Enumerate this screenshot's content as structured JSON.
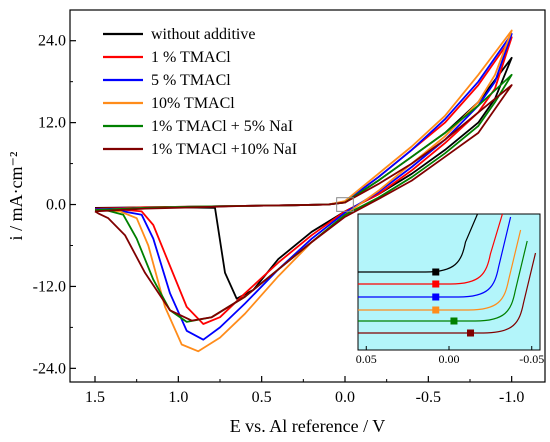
{
  "chart_data": {
    "type": "line",
    "xlabel": "E vs. Al reference / V",
    "ylabel": "i / mA·cm⁻²",
    "xlim": [
      1.65,
      -1.2
    ],
    "ylim": [
      -26,
      28.5
    ],
    "x_reversed": true,
    "xticks": [
      1.5,
      1.0,
      0.5,
      0.0,
      -0.5,
      -1.0
    ],
    "xtick_labels": [
      "1.5",
      "1.0",
      "0.5",
      "0.0",
      "-0.5",
      "-1.0"
    ],
    "yticks": [
      24,
      12,
      0,
      -12,
      -24
    ],
    "ytick_labels": [
      "24.0",
      "12.0",
      "0.0",
      "-12.0",
      "-24.0"
    ],
    "legend_position": "top-left",
    "grid": false,
    "series": [
      {
        "name": "without additive",
        "color": "#000000",
        "forward": [
          [
            1.5,
            -0.5
          ],
          [
            1.2,
            -0.4
          ],
          [
            0.9,
            -0.3
          ],
          [
            0.6,
            -0.2
          ],
          [
            0.3,
            -0.1
          ],
          [
            0.1,
            0.0
          ],
          [
            0.0,
            0.3
          ],
          [
            -0.2,
            3.5
          ],
          [
            -0.4,
            7.0
          ],
          [
            -0.6,
            10.5
          ],
          [
            -0.8,
            15.0
          ],
          [
            -1.0,
            21.5
          ]
        ],
        "reverse": [
          [
            -1.0,
            21.5
          ],
          [
            -0.9,
            15.5
          ],
          [
            -0.8,
            12.0
          ],
          [
            -0.6,
            8.0
          ],
          [
            -0.4,
            4.5
          ],
          [
            -0.2,
            1.5
          ],
          [
            0.0,
            -1.0
          ],
          [
            0.2,
            -4.0
          ],
          [
            0.4,
            -8.0
          ],
          [
            0.55,
            -12.5
          ],
          [
            0.65,
            -13.8
          ],
          [
            0.72,
            -10.0
          ],
          [
            0.78,
            -0.5
          ],
          [
            1.0,
            -0.4
          ],
          [
            1.2,
            -0.4
          ],
          [
            1.5,
            -0.5
          ]
        ]
      },
      {
        "name": "1 % TMACl",
        "color": "#ff0000",
        "forward": [
          [
            1.5,
            -0.6
          ],
          [
            1.2,
            -0.4
          ],
          [
            0.9,
            -0.3
          ],
          [
            0.6,
            -0.2
          ],
          [
            0.3,
            -0.1
          ],
          [
            0.1,
            0.0
          ],
          [
            0.0,
            0.4
          ],
          [
            -0.2,
            4.0
          ],
          [
            -0.4,
            8.0
          ],
          [
            -0.6,
            12.0
          ],
          [
            -0.8,
            17.5
          ],
          [
            -1.0,
            24.5
          ]
        ],
        "reverse": [
          [
            -1.0,
            24.5
          ],
          [
            -0.9,
            17.0
          ],
          [
            -0.8,
            13.5
          ],
          [
            -0.6,
            9.0
          ],
          [
            -0.4,
            5.0
          ],
          [
            -0.2,
            1.5
          ],
          [
            0.0,
            -1.0
          ],
          [
            0.2,
            -4.5
          ],
          [
            0.4,
            -8.5
          ],
          [
            0.6,
            -13.0
          ],
          [
            0.75,
            -16.5
          ],
          [
            0.85,
            -17.5
          ],
          [
            0.95,
            -15.0
          ],
          [
            1.05,
            -9.0
          ],
          [
            1.15,
            -3.0
          ],
          [
            1.22,
            -1.0
          ],
          [
            1.35,
            -0.7
          ],
          [
            1.5,
            -0.6
          ]
        ]
      },
      {
        "name": "5 % TMACl",
        "color": "#0000ff",
        "forward": [
          [
            1.5,
            -0.7
          ],
          [
            1.2,
            -0.5
          ],
          [
            0.9,
            -0.3
          ],
          [
            0.6,
            -0.2
          ],
          [
            0.3,
            -0.1
          ],
          [
            0.1,
            0.0
          ],
          [
            0.0,
            0.4
          ],
          [
            -0.2,
            4.0
          ],
          [
            -0.4,
            8.0
          ],
          [
            -0.6,
            12.5
          ],
          [
            -0.8,
            18.0
          ],
          [
            -1.0,
            25.0
          ]
        ],
        "reverse": [
          [
            -1.0,
            25.0
          ],
          [
            -0.9,
            18.0
          ],
          [
            -0.8,
            14.5
          ],
          [
            -0.6,
            9.5
          ],
          [
            -0.4,
            5.5
          ],
          [
            -0.2,
            1.8
          ],
          [
            0.0,
            -1.2
          ],
          [
            0.2,
            -5.0
          ],
          [
            0.4,
            -9.5
          ],
          [
            0.6,
            -14.5
          ],
          [
            0.75,
            -18.0
          ],
          [
            0.85,
            -19.8
          ],
          [
            0.95,
            -18.5
          ],
          [
            1.05,
            -13.0
          ],
          [
            1.15,
            -5.0
          ],
          [
            1.22,
            -1.5
          ],
          [
            1.35,
            -0.9
          ],
          [
            1.5,
            -0.7
          ]
        ]
      },
      {
        "name": "10% TMACl",
        "color": "#ff8c1a",
        "forward": [
          [
            1.5,
            -0.8
          ],
          [
            1.2,
            -0.5
          ],
          [
            0.9,
            -0.3
          ],
          [
            0.6,
            -0.2
          ],
          [
            0.3,
            -0.1
          ],
          [
            0.1,
            0.0
          ],
          [
            0.0,
            0.5
          ],
          [
            -0.2,
            4.5
          ],
          [
            -0.4,
            8.5
          ],
          [
            -0.6,
            13.0
          ],
          [
            -0.8,
            19.0
          ],
          [
            -1.0,
            25.5
          ]
        ],
        "reverse": [
          [
            -1.0,
            25.5
          ],
          [
            -0.9,
            19.0
          ],
          [
            -0.8,
            15.0
          ],
          [
            -0.6,
            10.0
          ],
          [
            -0.4,
            6.0
          ],
          [
            -0.2,
            2.0
          ],
          [
            0.0,
            -1.5
          ],
          [
            0.2,
            -5.5
          ],
          [
            0.4,
            -10.5
          ],
          [
            0.6,
            -16.0
          ],
          [
            0.75,
            -19.5
          ],
          [
            0.88,
            -21.5
          ],
          [
            0.98,
            -20.5
          ],
          [
            1.08,
            -15.0
          ],
          [
            1.18,
            -6.0
          ],
          [
            1.25,
            -2.0
          ],
          [
            1.35,
            -1.0
          ],
          [
            1.5,
            -0.8
          ]
        ]
      },
      {
        "name": "1% TMACl + 5% NaI",
        "color": "#008000",
        "forward": [
          [
            1.5,
            -0.8
          ],
          [
            1.2,
            -0.5
          ],
          [
            0.9,
            -0.3
          ],
          [
            0.6,
            -0.2
          ],
          [
            0.3,
            -0.1
          ],
          [
            0.1,
            0.0
          ],
          [
            0.0,
            0.3
          ],
          [
            -0.2,
            3.5
          ],
          [
            -0.4,
            7.0
          ],
          [
            -0.6,
            10.5
          ],
          [
            -0.8,
            14.5
          ],
          [
            -1.0,
            19.0
          ]
        ],
        "reverse": [
          [
            -1.0,
            19.0
          ],
          [
            -0.9,
            15.0
          ],
          [
            -0.8,
            11.5
          ],
          [
            -0.6,
            7.5
          ],
          [
            -0.4,
            4.0
          ],
          [
            -0.2,
            1.0
          ],
          [
            0.0,
            -1.5
          ],
          [
            0.2,
            -5.5
          ],
          [
            0.4,
            -9.5
          ],
          [
            0.6,
            -13.5
          ],
          [
            0.8,
            -16.5
          ],
          [
            0.95,
            -17.2
          ],
          [
            1.05,
            -15.5
          ],
          [
            1.15,
            -11.0
          ],
          [
            1.25,
            -5.0
          ],
          [
            1.33,
            -1.5
          ],
          [
            1.42,
            -0.9
          ],
          [
            1.5,
            -0.8
          ]
        ]
      },
      {
        "name": "1% TMACl +10% NaI",
        "color": "#800000",
        "forward": [
          [
            1.5,
            -1.0
          ],
          [
            1.2,
            -0.6
          ],
          [
            0.9,
            -0.4
          ],
          [
            0.6,
            -0.2
          ],
          [
            0.3,
            -0.1
          ],
          [
            0.1,
            0.0
          ],
          [
            0.0,
            0.3
          ],
          [
            -0.2,
            3.0
          ],
          [
            -0.4,
            6.0
          ],
          [
            -0.6,
            9.5
          ],
          [
            -0.8,
            13.5
          ],
          [
            -1.0,
            17.5
          ]
        ],
        "reverse": [
          [
            -1.0,
            17.5
          ],
          [
            -0.9,
            14.0
          ],
          [
            -0.8,
            10.5
          ],
          [
            -0.6,
            7.0
          ],
          [
            -0.4,
            3.5
          ],
          [
            -0.2,
            0.8
          ],
          [
            0.0,
            -1.8
          ],
          [
            0.2,
            -5.5
          ],
          [
            0.4,
            -9.5
          ],
          [
            0.6,
            -13.5
          ],
          [
            0.8,
            -16.5
          ],
          [
            0.92,
            -17.0
          ],
          [
            1.05,
            -15.5
          ],
          [
            1.2,
            -10.0
          ],
          [
            1.32,
            -4.5
          ],
          [
            1.42,
            -2.0
          ],
          [
            1.48,
            -1.3
          ],
          [
            1.5,
            -1.0
          ]
        ]
      }
    ],
    "inset": {
      "xlim": [
        0.055,
        -0.055
      ],
      "xticks": [
        0.05,
        0.0,
        -0.05
      ],
      "xtick_labels": [
        "0.05",
        "0.00",
        "-0.05"
      ],
      "background": "#b3f5fa"
    }
  }
}
